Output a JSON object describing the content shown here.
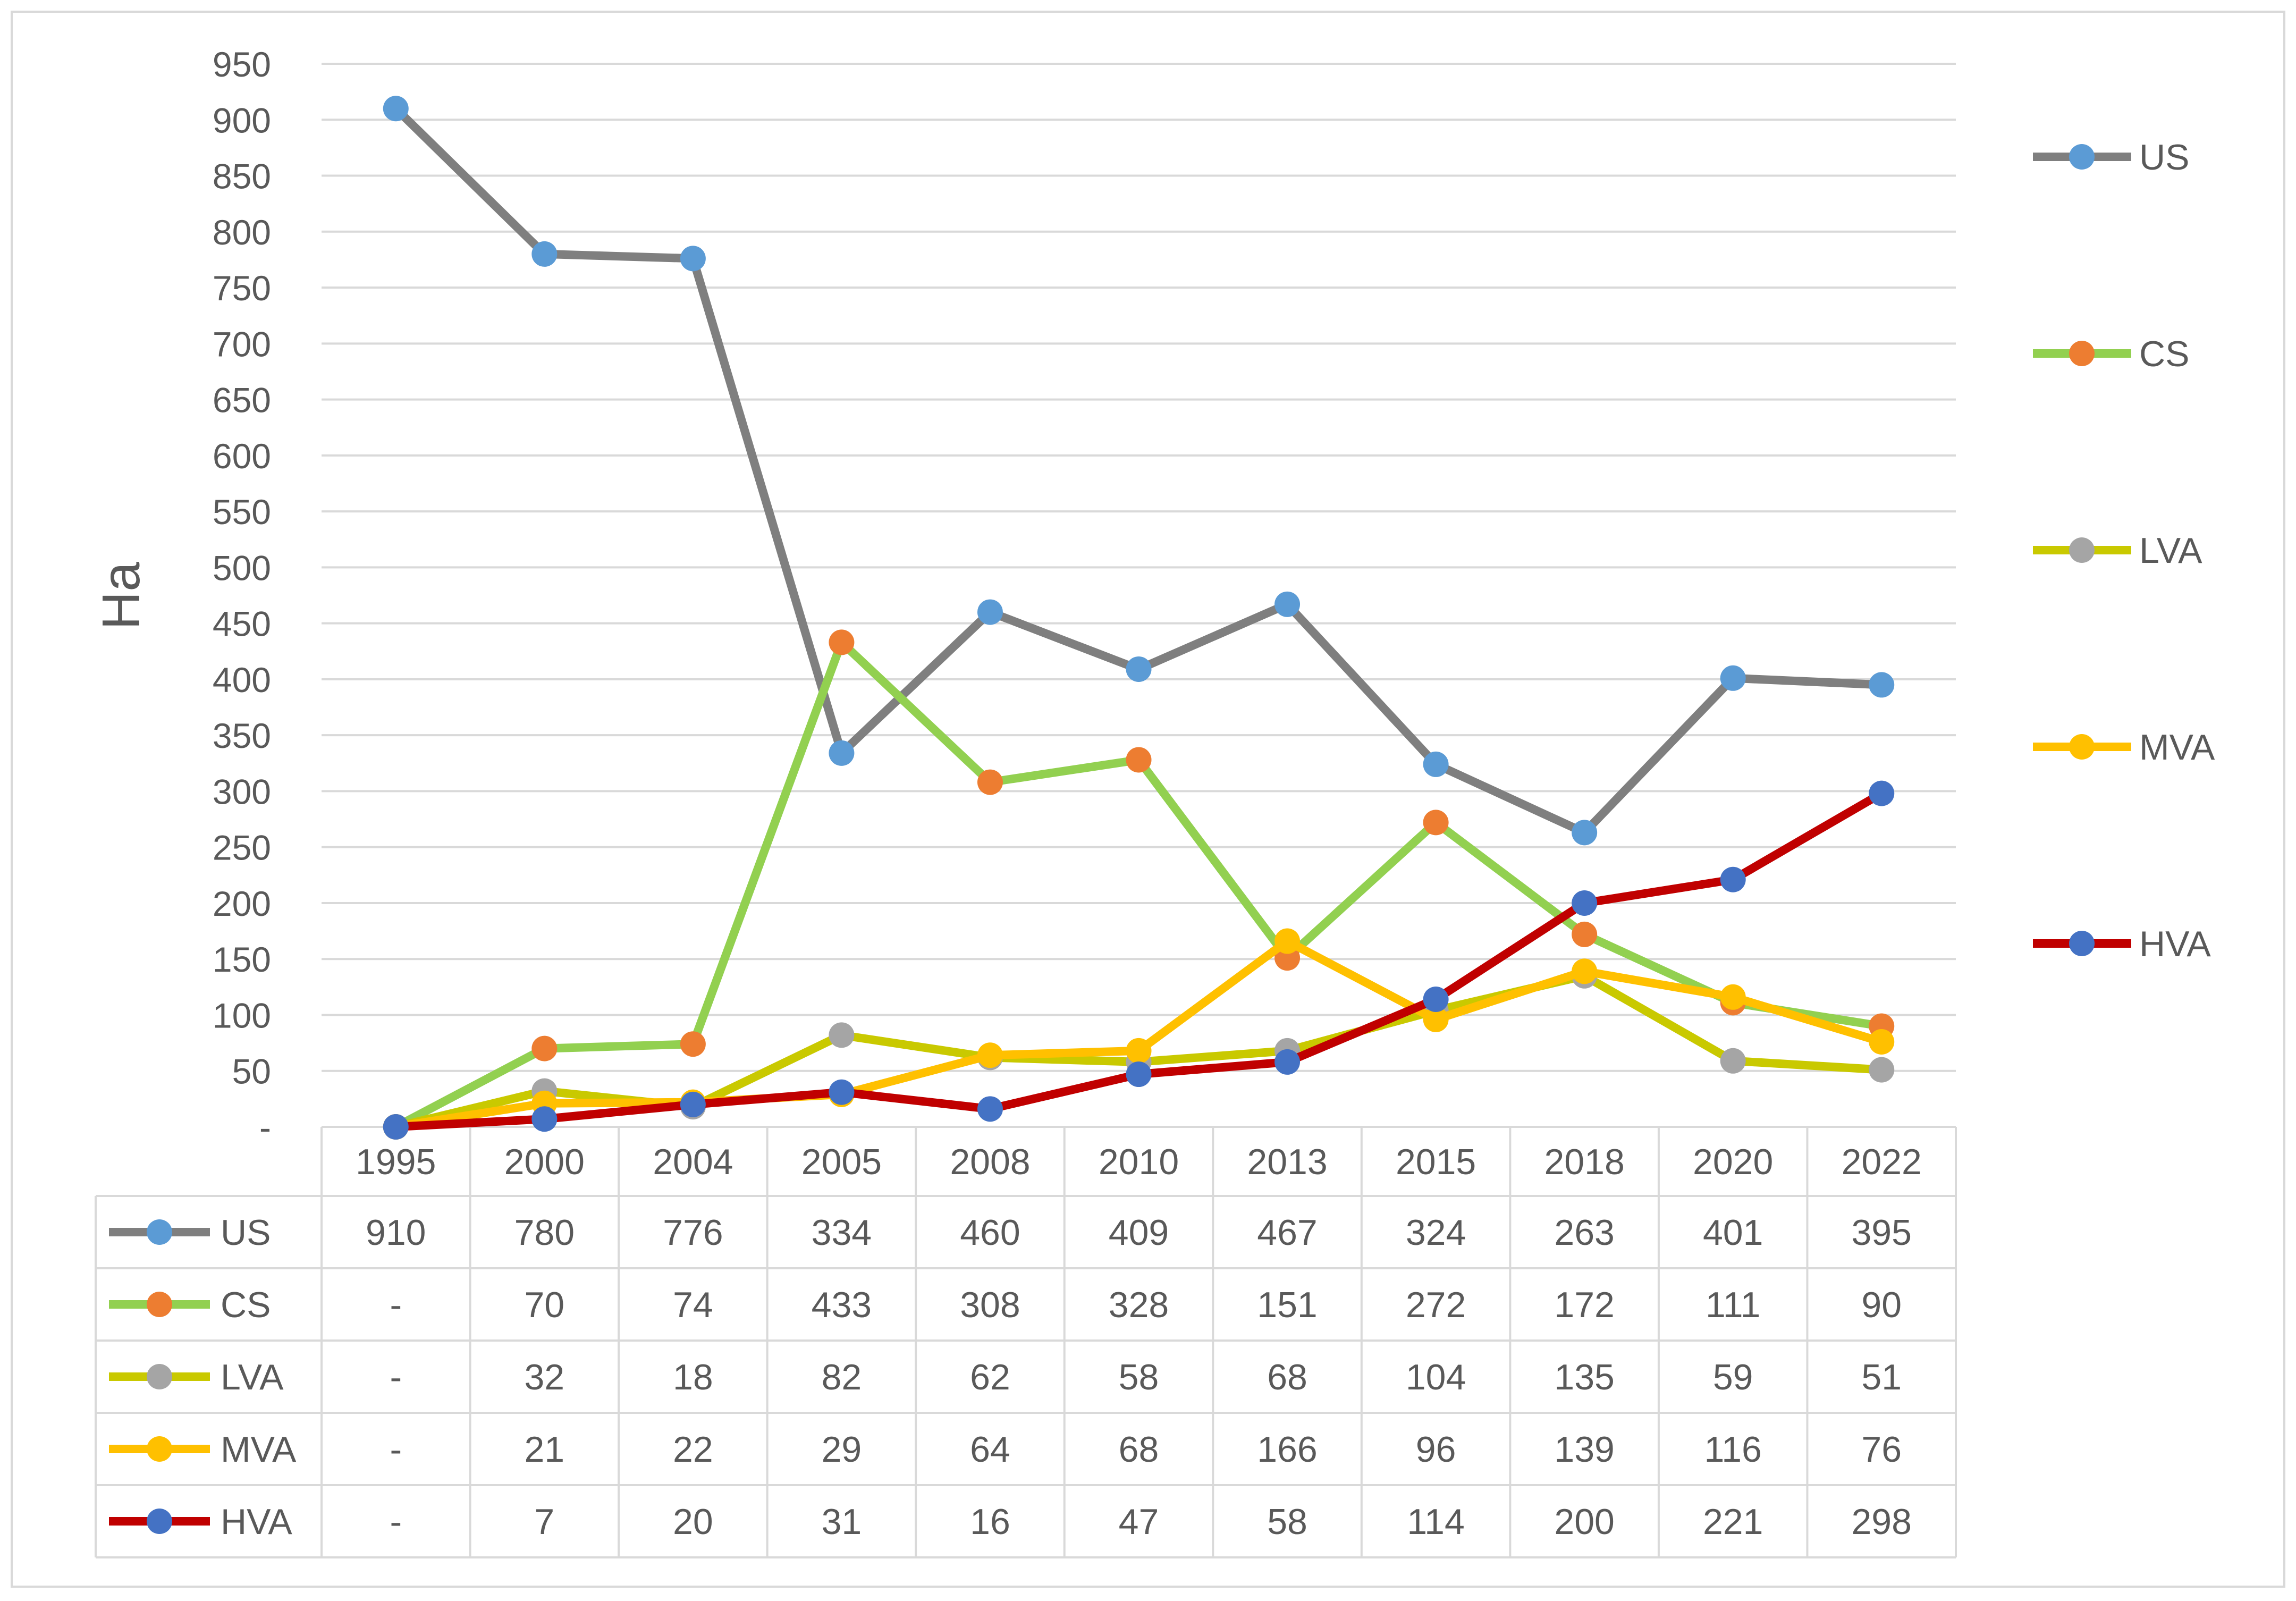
{
  "chart_data": {
    "type": "line",
    "title": "",
    "xlabel": "",
    "ylabel": "Ha",
    "ylim": [
      0,
      950
    ],
    "ytick_step": 50,
    "y_zero_label": "-",
    "grid": true,
    "legend_placement": "right",
    "categories": [
      "1995",
      "2000",
      "2004",
      "2005",
      "2008",
      "2010",
      "2013",
      "2015",
      "2018",
      "2020",
      "2022"
    ],
    "series": [
      {
        "name": "US",
        "line_color": "#7F7F7F",
        "marker_color": "#5B9BD5",
        "values": [
          910,
          780,
          776,
          334,
          460,
          409,
          467,
          324,
          263,
          401,
          395
        ],
        "table_values": [
          "910",
          "780",
          "776",
          "334",
          "460",
          "409",
          "467",
          "324",
          "263",
          "401",
          "395"
        ]
      },
      {
        "name": "CS",
        "line_color": "#92D050",
        "marker_color": "#ED7D31",
        "values": [
          0,
          70,
          74,
          433,
          308,
          328,
          151,
          272,
          172,
          111,
          90
        ],
        "table_values": [
          "-",
          "70",
          "74",
          "433",
          "308",
          "328",
          "151",
          "272",
          "172",
          "111",
          "90"
        ]
      },
      {
        "name": "LVA",
        "line_color": "#C9C900",
        "marker_color": "#A5A5A5",
        "values": [
          0,
          32,
          18,
          82,
          62,
          58,
          68,
          104,
          135,
          59,
          51
        ],
        "table_values": [
          "-",
          "32",
          "18",
          "82",
          "62",
          "58",
          "68",
          "104",
          "135",
          "59",
          "51"
        ]
      },
      {
        "name": "MVA",
        "line_color": "#FFC000",
        "marker_color": "#FFC000",
        "values": [
          0,
          21,
          22,
          29,
          64,
          68,
          166,
          96,
          139,
          116,
          76
        ],
        "table_values": [
          "-",
          "21",
          "22",
          "29",
          "64",
          "68",
          "166",
          "96",
          "139",
          "116",
          "76"
        ]
      },
      {
        "name": "HVA",
        "line_color": "#C00000",
        "marker_color": "#4472C4",
        "values": [
          0,
          7,
          20,
          31,
          16,
          47,
          58,
          114,
          200,
          221,
          298
        ],
        "table_values": [
          "-",
          "7",
          "20",
          "31",
          "16",
          "47",
          "58",
          "114",
          "200",
          "221",
          "298"
        ]
      }
    ]
  }
}
